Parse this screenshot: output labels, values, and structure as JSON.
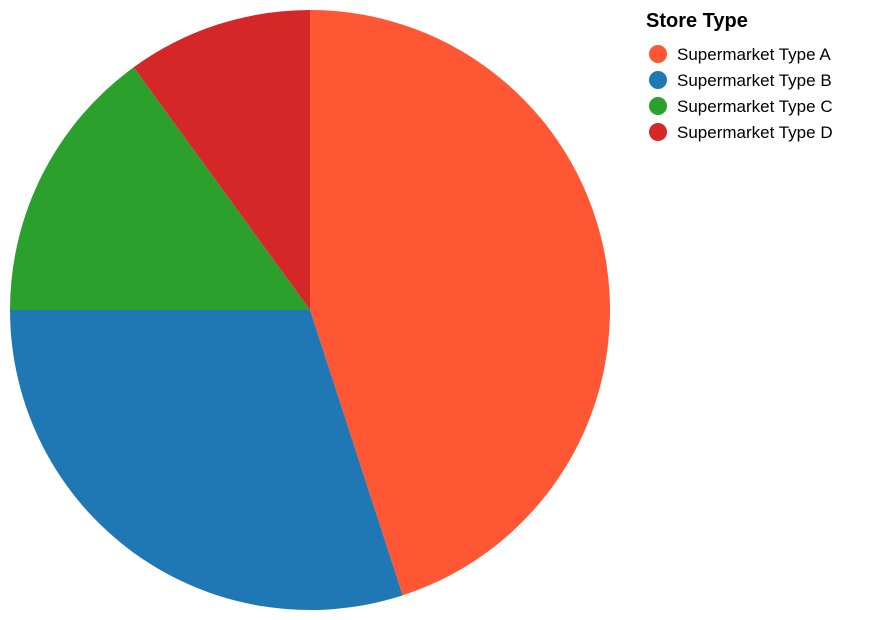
{
  "chart_data": {
    "type": "pie",
    "categories": [
      "Supermarket Type A",
      "Supermarket Type B",
      "Supermarket Type C",
      "Supermarket Type D"
    ],
    "values": [
      45,
      30,
      15,
      10
    ],
    "colors": [
      "#FF5733",
      "#1F77B4",
      "#2CA02C",
      "#D62728"
    ],
    "start_angle_deg": 0,
    "direction": "clockwise",
    "legend": {
      "title": "Store Type",
      "placement": "top-right"
    }
  }
}
